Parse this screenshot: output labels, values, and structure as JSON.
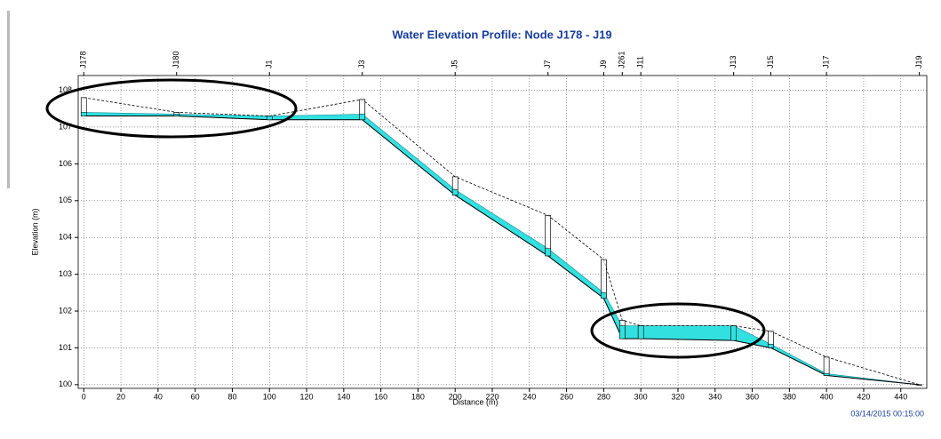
{
  "chart_data": {
    "type": "profile",
    "title": "Water Elevation Profile:  Node J178 - J19",
    "x_label": "Distance (m)",
    "y_label": "Elevation (m)",
    "timestamp": "03/14/2015 00:15:00",
    "nodes": [
      "J178",
      "J180",
      "J1",
      "J3",
      "J5",
      "J7",
      "J9",
      "J261",
      "J11",
      "J13",
      "J15",
      "J17",
      "J19"
    ],
    "x": [
      0,
      50,
      100,
      150,
      200,
      250,
      280,
      290,
      300,
      350,
      370,
      400,
      450
    ],
    "ground": [
      107.8,
      107.4,
      107.3,
      107.75,
      105.65,
      104.6,
      103.4,
      101.75,
      101.6,
      101.6,
      101.45,
      100.75,
      100.0
    ],
    "invert": [
      107.3,
      107.3,
      107.2,
      107.2,
      105.15,
      103.5,
      102.35,
      101.25,
      101.25,
      101.2,
      101.0,
      100.25,
      100.0
    ],
    "water": [
      107.4,
      107.35,
      107.3,
      107.35,
      105.3,
      103.7,
      102.5,
      101.6,
      101.6,
      101.6,
      101.1,
      100.3,
      100.0
    ],
    "water_color": "#33e0e0",
    "xlim": [
      -3,
      454
    ],
    "ylim": [
      99.9,
      108.4
    ],
    "xticks": [
      0,
      20,
      40,
      60,
      80,
      100,
      120,
      140,
      160,
      180,
      200,
      220,
      240,
      260,
      280,
      300,
      320,
      340,
      360,
      380,
      400,
      420,
      440
    ],
    "yticks": [
      100,
      101,
      102,
      103,
      104,
      105,
      106,
      107,
      108
    ],
    "grid": true
  }
}
